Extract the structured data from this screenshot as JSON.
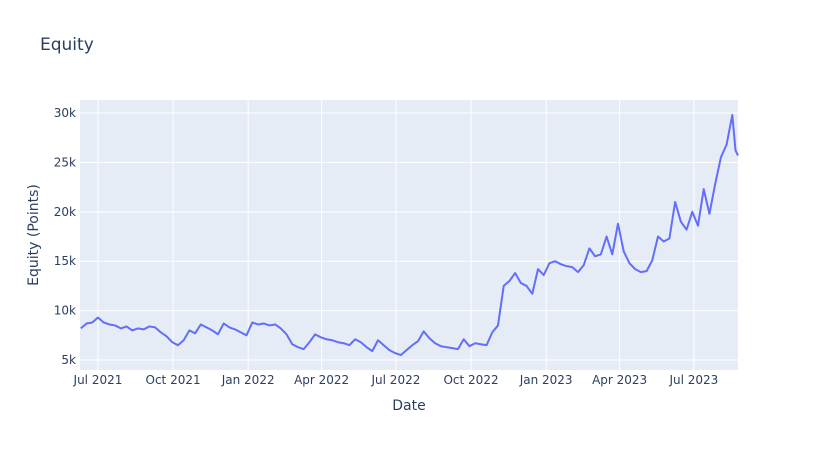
{
  "chart_data": {
    "type": "line",
    "title": "Equity",
    "xlabel": "Date",
    "ylabel": "Equity (Points)",
    "grid": true,
    "xlim": [
      "2021-06-09",
      "2023-08-24"
    ],
    "ylim": [
      3990,
      31320
    ],
    "xticks": [
      {
        "value": "2021-07-01",
        "label": "Jul 2021"
      },
      {
        "value": "2021-10-01",
        "label": "Oct 2021"
      },
      {
        "value": "2022-01-01",
        "label": "Jan 2022"
      },
      {
        "value": "2022-04-01",
        "label": "Apr 2022"
      },
      {
        "value": "2022-07-01",
        "label": "Jul 2022"
      },
      {
        "value": "2022-10-01",
        "label": "Oct 2022"
      },
      {
        "value": "2023-01-01",
        "label": "Jan 2023"
      },
      {
        "value": "2023-04-01",
        "label": "Apr 2023"
      },
      {
        "value": "2023-07-01",
        "label": "Jul 2023"
      }
    ],
    "yticks": [
      {
        "value": 5000,
        "label": "5k"
      },
      {
        "value": 10000,
        "label": "10k"
      },
      {
        "value": 15000,
        "label": "15k"
      },
      {
        "value": 20000,
        "label": "20k"
      },
      {
        "value": 25000,
        "label": "25k"
      },
      {
        "value": 30000,
        "label": "30k"
      }
    ],
    "x": [
      "2021-06-10",
      "2021-06-17",
      "2021-06-24",
      "2021-07-01",
      "2021-07-08",
      "2021-07-15",
      "2021-07-22",
      "2021-07-29",
      "2021-08-05",
      "2021-08-12",
      "2021-08-19",
      "2021-08-26",
      "2021-09-02",
      "2021-09-09",
      "2021-09-16",
      "2021-09-23",
      "2021-09-30",
      "2021-10-07",
      "2021-10-14",
      "2021-10-21",
      "2021-10-28",
      "2021-11-04",
      "2021-11-11",
      "2021-11-18",
      "2021-11-25",
      "2021-12-02",
      "2021-12-09",
      "2021-12-16",
      "2021-12-23",
      "2021-12-30",
      "2022-01-06",
      "2022-01-13",
      "2022-01-20",
      "2022-01-27",
      "2022-02-03",
      "2022-02-10",
      "2022-02-17",
      "2022-02-24",
      "2022-03-03",
      "2022-03-10",
      "2022-03-17",
      "2022-03-24",
      "2022-03-31",
      "2022-04-07",
      "2022-04-14",
      "2022-04-21",
      "2022-04-28",
      "2022-05-05",
      "2022-05-12",
      "2022-05-19",
      "2022-05-26",
      "2022-06-02",
      "2022-06-09",
      "2022-06-16",
      "2022-06-23",
      "2022-06-30",
      "2022-07-07",
      "2022-07-14",
      "2022-07-21",
      "2022-07-28",
      "2022-08-04",
      "2022-08-11",
      "2022-08-18",
      "2022-08-25",
      "2022-09-01",
      "2022-09-08",
      "2022-09-15",
      "2022-09-22",
      "2022-09-29",
      "2022-10-06",
      "2022-10-13",
      "2022-10-20",
      "2022-10-27",
      "2022-11-03",
      "2022-11-10",
      "2022-11-17",
      "2022-11-24",
      "2022-12-01",
      "2022-12-08",
      "2022-12-15",
      "2022-12-22",
      "2022-12-29",
      "2023-01-05",
      "2023-01-12",
      "2023-01-19",
      "2023-01-26",
      "2023-02-02",
      "2023-02-09",
      "2023-02-16",
      "2023-02-23",
      "2023-03-02",
      "2023-03-09",
      "2023-03-16",
      "2023-03-23",
      "2023-03-30",
      "2023-04-06",
      "2023-04-13",
      "2023-04-20",
      "2023-04-27",
      "2023-05-04",
      "2023-05-11",
      "2023-05-18",
      "2023-05-25",
      "2023-06-01",
      "2023-06-08",
      "2023-06-15",
      "2023-06-22",
      "2023-06-29",
      "2023-07-06",
      "2023-07-13",
      "2023-07-20",
      "2023-07-27",
      "2023-08-03",
      "2023-08-10",
      "2023-08-17",
      "2023-08-21",
      "2023-08-24"
    ],
    "series": [
      {
        "color": "#636efa",
        "values": [
          8200,
          8700,
          8800,
          9300,
          8800,
          8600,
          8500,
          8200,
          8400,
          8000,
          8200,
          8100,
          8400,
          8300,
          7800,
          7400,
          6800,
          6500,
          7000,
          8000,
          7700,
          8600,
          8300,
          8000,
          7600,
          8700,
          8300,
          8100,
          7800,
          7500,
          8800,
          8600,
          8700,
          8500,
          8600,
          8200,
          7600,
          6600,
          6300,
          6100,
          6800,
          7600,
          7300,
          7100,
          7000,
          6800,
          6700,
          6500,
          7100,
          6800,
          6300,
          5900,
          7000,
          6500,
          6000,
          5700,
          5500,
          6000,
          6500,
          6900,
          7900,
          7200,
          6700,
          6400,
          6300,
          6200,
          6100,
          7100,
          6400,
          6700,
          6600,
          6500,
          7800,
          8500,
          12500,
          13000,
          13800,
          12800,
          12500,
          11700,
          14200,
          13600,
          14800,
          15000,
          14700,
          14500,
          14400,
          13900,
          14600,
          16300,
          15500,
          15700,
          17500,
          15700,
          18800,
          16000,
          14800,
          14200,
          13900,
          14000,
          15100,
          17500,
          17000,
          17300,
          21000,
          19000,
          18200,
          20000,
          18600,
          22300,
          19800,
          22800,
          25500,
          26800,
          29800,
          26200,
          25700
        ]
      }
    ]
  }
}
